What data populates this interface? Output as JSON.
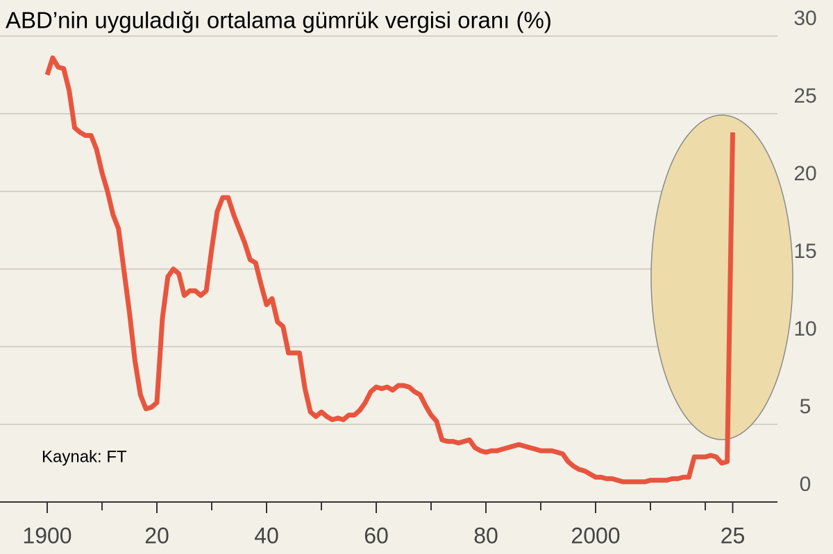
{
  "chart_data": {
    "type": "line",
    "title": "ABD’nin uyguladığı ortalama gümrük vergisi oranı (%)",
    "source": "Kaynak: FT",
    "x": [
      1900,
      1901,
      1902,
      1903,
      1904,
      1905,
      1906,
      1907,
      1908,
      1909,
      1910,
      1911,
      1912,
      1913,
      1914,
      1915,
      1916,
      1917,
      1918,
      1919,
      1920,
      1921,
      1922,
      1923,
      1924,
      1925,
      1926,
      1927,
      1928,
      1929,
      1930,
      1931,
      1932,
      1933,
      1934,
      1935,
      1936,
      1937,
      1938,
      1939,
      1940,
      1941,
      1942,
      1943,
      1944,
      1945,
      1946,
      1947,
      1948,
      1949,
      1950,
      1951,
      1952,
      1953,
      1954,
      1955,
      1956,
      1957,
      1958,
      1959,
      1960,
      1961,
      1962,
      1963,
      1964,
      1965,
      1966,
      1967,
      1968,
      1969,
      1970,
      1971,
      1972,
      1973,
      1974,
      1975,
      1976,
      1977,
      1978,
      1979,
      1980,
      1981,
      1982,
      1983,
      1984,
      1985,
      1986,
      1987,
      1988,
      1989,
      1990,
      1991,
      1992,
      1993,
      1994,
      1995,
      1996,
      1997,
      1998,
      1999,
      2000,
      2001,
      2002,
      2003,
      2004,
      2005,
      2006,
      2007,
      2008,
      2009,
      2010,
      2011,
      2012,
      2013,
      2014,
      2015,
      2016,
      2017,
      2018,
      2019,
      2020,
      2021,
      2022,
      2023,
      2024,
      2025
    ],
    "values": [
      27.5,
      28.6,
      28,
      27.9,
      26.5,
      24.1,
      23.8,
      23.6,
      23.6,
      22.7,
      21.2,
      20,
      18.5,
      17.6,
      14.9,
      12.2,
      9.1,
      6.9,
      6,
      6.1,
      6.4,
      11.8,
      14.5,
      15,
      14.7,
      13.3,
      13.6,
      13.6,
      13.3,
      13.6,
      16.3,
      18.7,
      19.6,
      19.6,
      18.5,
      17.6,
      16.7,
      15.6,
      15.4,
      14,
      12.7,
      13.1,
      11.6,
      11.3,
      9.6,
      9.6,
      9.6,
      7.3,
      5.8,
      5.5,
      5.8,
      5.5,
      5.3,
      5.4,
      5.3,
      5.6,
      5.6,
      5.9,
      6.4,
      7.1,
      7.4,
      7.3,
      7.4,
      7.2,
      7.5,
      7.5,
      7.4,
      7.1,
      6.9,
      6.2,
      5.6,
      5.2,
      4,
      3.9,
      3.9,
      3.8,
      3.9,
      4,
      3.5,
      3.3,
      3.2,
      3.3,
      3.3,
      3.4,
      3.5,
      3.6,
      3.7,
      3.6,
      3.5,
      3.4,
      3.3,
      3.3,
      3.3,
      3.2,
      3.1,
      2.6,
      2.3,
      2.1,
      2,
      1.8,
      1.6,
      1.6,
      1.5,
      1.5,
      1.4,
      1.3,
      1.3,
      1.3,
      1.3,
      1.3,
      1.4,
      1.4,
      1.4,
      1.4,
      1.5,
      1.5,
      1.6,
      1.6,
      2.9,
      2.9,
      2.9,
      3,
      2.9,
      2.5,
      2.6,
      23.8
    ],
    "color": "#e8553e",
    "xlim": [
      1895,
      2035
    ],
    "xticks": [
      1900,
      {
        "value": 1920,
        "label": "20"
      },
      {
        "value": 1940,
        "label": "40"
      },
      {
        "value": 1960,
        "label": "60"
      },
      {
        "value": 1980,
        "label": "80"
      },
      2000,
      {
        "value": 2025,
        "label": "25"
      }
    ],
    "xminorticks": [
      1910,
      1930,
      1950,
      1970,
      1990,
      2010,
      2020
    ],
    "ylim": [
      0,
      30
    ],
    "yticks": [
      0,
      5,
      10,
      15,
      20,
      25,
      30
    ],
    "grid": true
  }
}
